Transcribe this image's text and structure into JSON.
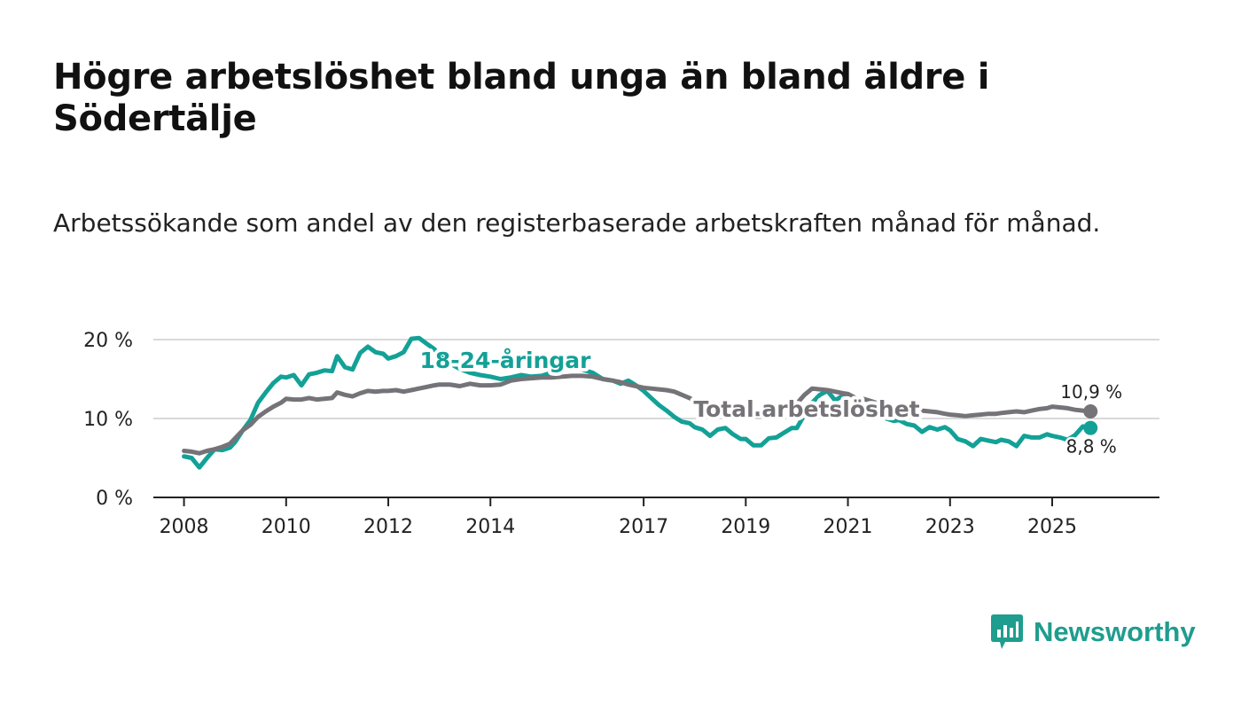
{
  "title": "Högre arbetslöshet bland unga än bland äldre i Södertälje",
  "subtitle": "Arbetssökande som andel av den registerbaserade arbetskraften månad för månad.",
  "brand": {
    "name": "Newsworthy",
    "color": "#1f9d8e"
  },
  "chart_data": {
    "type": "line",
    "title": "Högre arbetslöshet bland unga än bland äldre i Södertälje",
    "subtitle": "Arbetssökande som andel av den registerbaserade arbetskraften månad för månad.",
    "xlabel": "",
    "ylabel": "",
    "xlim": [
      2007.4,
      2027.1
    ],
    "ylim": [
      0,
      20
    ],
    "yticks": [
      0,
      10,
      20
    ],
    "ytick_labels": [
      "0 %",
      "10 %",
      "20 %"
    ],
    "xticks": [
      2008,
      2010,
      2012,
      2014,
      2017,
      2019,
      2021,
      2023,
      2025
    ],
    "xtick_labels": [
      "2008",
      "2010",
      "2012",
      "2014",
      "2017",
      "2019",
      "2021",
      "2023",
      "2025"
    ],
    "grid": true,
    "series": [
      {
        "name": "18-24-åringar",
        "color": "#13a197",
        "end_label": "8,8 %",
        "x": [
          2008.0,
          2008.15,
          2008.3,
          2008.45,
          2008.6,
          2008.75,
          2008.9,
          2009.0,
          2009.15,
          2009.3,
          2009.45,
          2009.6,
          2009.75,
          2009.9,
          2010.0,
          2010.15,
          2010.3,
          2010.45,
          2010.6,
          2010.75,
          2010.9,
          2011.0,
          2011.15,
          2011.3,
          2011.45,
          2011.6,
          2011.75,
          2011.9,
          2012.0,
          2012.15,
          2012.3,
          2012.45,
          2012.6,
          2012.75,
          2012.9,
          2013.0,
          2013.2,
          2013.4,
          2013.6,
          2013.8,
          2014.0,
          2014.2,
          2014.4,
          2014.6,
          2014.8,
          2015.0,
          2015.2,
          2015.4,
          2015.6,
          2015.8,
          2016.0,
          2016.2,
          2016.4,
          2016.55,
          2016.7,
          2016.85,
          2017.0,
          2017.15,
          2017.3,
          2017.45,
          2017.6,
          2017.75,
          2017.9,
          2018.0,
          2018.15,
          2018.3,
          2018.45,
          2018.6,
          2018.75,
          2018.9,
          2019.0,
          2019.15,
          2019.3,
          2019.45,
          2019.6,
          2019.75,
          2019.9,
          2020.0,
          2020.15,
          2020.3,
          2020.45,
          2020.6,
          2020.75,
          2020.9,
          2021.0,
          2021.15,
          2021.3,
          2021.45,
          2021.6,
          2021.75,
          2021.9,
          2022.0,
          2022.15,
          2022.3,
          2022.45,
          2022.6,
          2022.75,
          2022.9,
          2023.0,
          2023.15,
          2023.3,
          2023.45,
          2023.6,
          2023.75,
          2023.9,
          2024.0,
          2024.15,
          2024.3,
          2024.45,
          2024.6,
          2024.75,
          2024.9,
          2025.0,
          2025.15,
          2025.3,
          2025.45,
          2025.6,
          2025.75
        ],
        "values": [
          5.2,
          5.0,
          3.8,
          5.0,
          6.1,
          6.0,
          6.3,
          7.0,
          8.5,
          9.8,
          12.0,
          13.3,
          14.5,
          15.3,
          15.2,
          15.5,
          14.2,
          15.6,
          15.8,
          16.1,
          16.0,
          17.9,
          16.5,
          16.2,
          18.3,
          19.1,
          18.4,
          18.2,
          17.6,
          17.9,
          18.4,
          20.1,
          20.2,
          19.5,
          18.8,
          18.0,
          17.0,
          16.3,
          15.8,
          15.5,
          15.3,
          15.0,
          15.2,
          15.5,
          15.3,
          15.4,
          15.8,
          16.4,
          16.6,
          16.2,
          15.8,
          15.0,
          14.8,
          14.4,
          14.8,
          14.2,
          13.5,
          12.6,
          11.7,
          11.0,
          10.2,
          9.6,
          9.4,
          8.9,
          8.6,
          7.8,
          8.6,
          8.8,
          8.0,
          7.4,
          7.4,
          6.6,
          6.6,
          7.5,
          7.6,
          8.2,
          8.8,
          8.8,
          10.5,
          12.0,
          13.0,
          13.5,
          12.3,
          12.9,
          12.1,
          10.7,
          11.4,
          10.8,
          10.3,
          10.0,
          9.7,
          9.8,
          9.3,
          9.1,
          8.3,
          8.9,
          8.6,
          8.9,
          8.5,
          7.4,
          7.1,
          6.5,
          7.4,
          7.2,
          7.0,
          7.3,
          7.1,
          6.5,
          7.8,
          7.6,
          7.6,
          8.0,
          7.8,
          7.6,
          7.3,
          7.9,
          9.0,
          8.8
        ]
      },
      {
        "name": "Total arbetslöshet",
        "color": "#757378",
        "end_label": "10,9 %",
        "x": [
          2008.0,
          2008.15,
          2008.3,
          2008.45,
          2008.6,
          2008.75,
          2008.9,
          2009.0,
          2009.15,
          2009.3,
          2009.45,
          2009.6,
          2009.75,
          2009.9,
          2010.0,
          2010.15,
          2010.3,
          2010.45,
          2010.6,
          2010.75,
          2010.9,
          2011.0,
          2011.15,
          2011.3,
          2011.45,
          2011.6,
          2011.75,
          2011.9,
          2012.0,
          2012.15,
          2012.3,
          2012.45,
          2012.6,
          2012.75,
          2012.9,
          2013.0,
          2013.2,
          2013.4,
          2013.6,
          2013.8,
          2014.0,
          2014.2,
          2014.4,
          2014.6,
          2014.8,
          2015.0,
          2015.2,
          2015.4,
          2015.6,
          2015.8,
          2016.0,
          2016.2,
          2016.4,
          2016.55,
          2016.7,
          2016.85,
          2017.0,
          2017.15,
          2017.3,
          2017.45,
          2017.6,
          2017.75,
          2017.9,
          2018.0,
          2018.15,
          2018.3,
          2018.45,
          2018.6,
          2018.75,
          2018.9,
          2019.0,
          2019.15,
          2019.3,
          2019.45,
          2019.6,
          2019.75,
          2019.9,
          2020.0,
          2020.15,
          2020.3,
          2020.45,
          2020.6,
          2020.75,
          2020.9,
          2021.0,
          2021.15,
          2021.3,
          2021.45,
          2021.6,
          2021.75,
          2021.9,
          2022.0,
          2022.15,
          2022.3,
          2022.45,
          2022.6,
          2022.75,
          2022.9,
          2023.0,
          2023.15,
          2023.3,
          2023.45,
          2023.6,
          2023.75,
          2023.9,
          2024.0,
          2024.15,
          2024.3,
          2024.45,
          2024.6,
          2024.75,
          2024.9,
          2025.0,
          2025.15,
          2025.3,
          2025.45,
          2025.6,
          2025.75
        ],
        "values": [
          5.9,
          5.8,
          5.6,
          5.9,
          6.1,
          6.4,
          6.8,
          7.5,
          8.5,
          9.2,
          10.2,
          10.9,
          11.5,
          12.0,
          12.5,
          12.4,
          12.4,
          12.6,
          12.4,
          12.5,
          12.6,
          13.3,
          13.0,
          12.8,
          13.2,
          13.5,
          13.4,
          13.5,
          13.5,
          13.6,
          13.4,
          13.6,
          13.8,
          14.0,
          14.2,
          14.3,
          14.3,
          14.1,
          14.4,
          14.2,
          14.2,
          14.3,
          14.8,
          15.0,
          15.1,
          15.2,
          15.2,
          15.3,
          15.4,
          15.4,
          15.3,
          15.0,
          14.8,
          14.6,
          14.3,
          14.1,
          13.9,
          13.8,
          13.7,
          13.6,
          13.4,
          13.0,
          12.6,
          12.2,
          11.8,
          11.5,
          11.3,
          11.1,
          10.9,
          10.8,
          10.7,
          10.6,
          10.6,
          10.9,
          11.0,
          11.2,
          11.5,
          11.9,
          13.0,
          13.8,
          13.7,
          13.6,
          13.4,
          13.2,
          13.1,
          12.6,
          12.5,
          12.2,
          11.9,
          11.6,
          11.5,
          11.4,
          11.3,
          11.1,
          11.0,
          10.9,
          10.8,
          10.6,
          10.5,
          10.4,
          10.3,
          10.4,
          10.5,
          10.6,
          10.6,
          10.7,
          10.8,
          10.9,
          10.8,
          11.0,
          11.2,
          11.3,
          11.5,
          11.4,
          11.3,
          11.1,
          11.0,
          10.9
        ]
      }
    ]
  }
}
